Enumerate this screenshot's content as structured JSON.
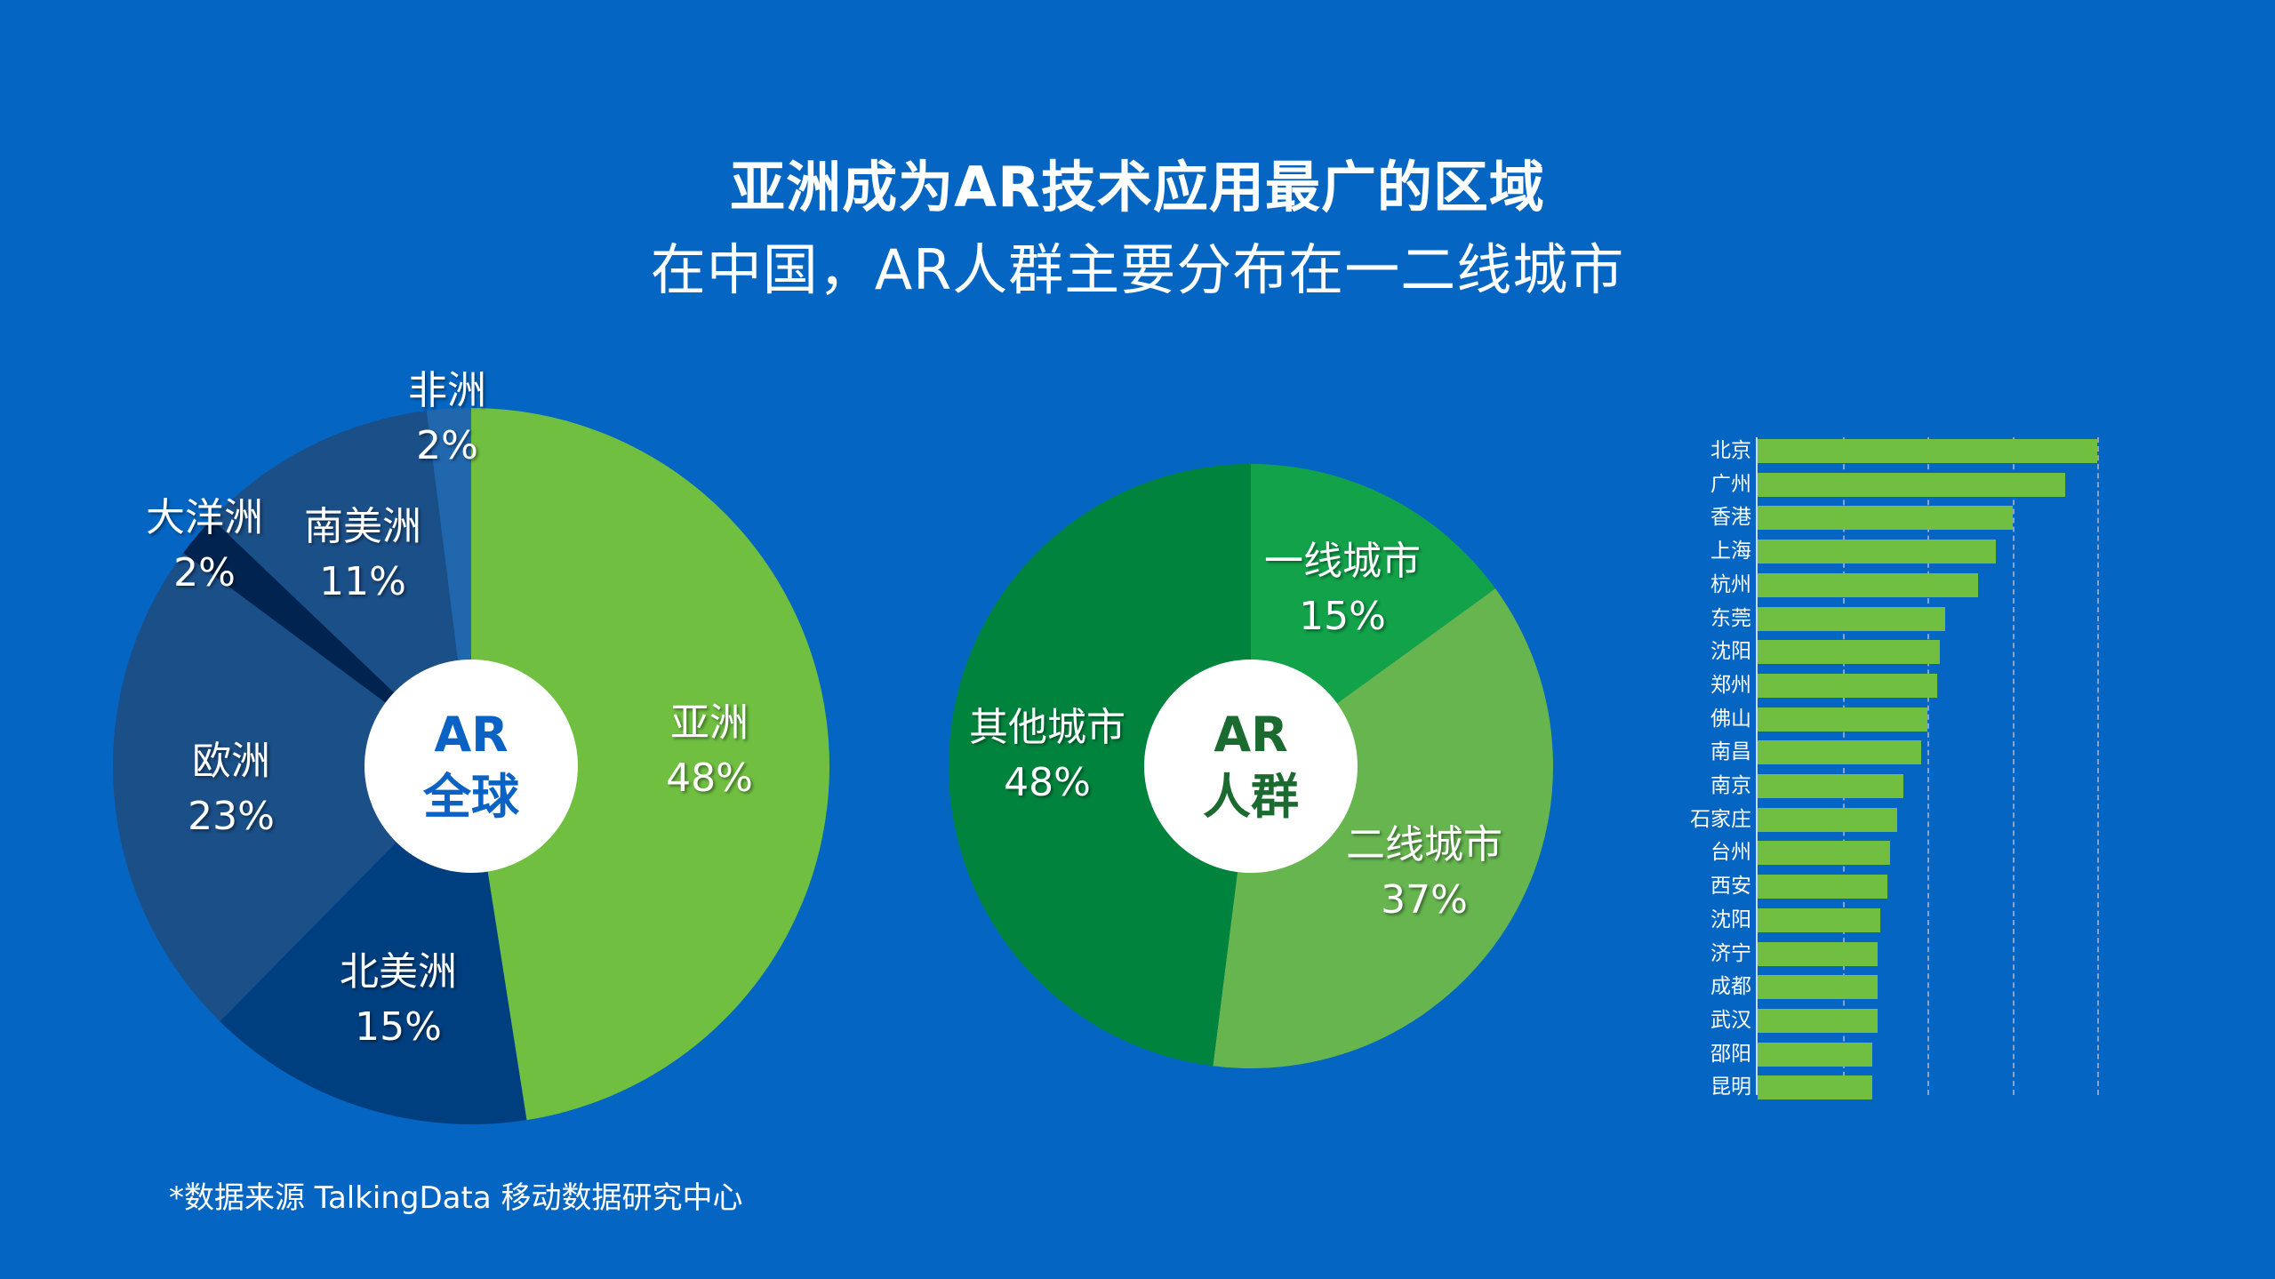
{
  "header": {
    "title": "亚洲成为AR技术应用最广的区域",
    "subtitle": "在中国，AR人群主要分布在一二线城市"
  },
  "colors": {
    "background": "#0466c2",
    "asia_green": "#70bf41",
    "bar_green": "#70bf41",
    "global_center_text": "#0a63c4",
    "crowd_center_text": "#1b6a2f"
  },
  "footnote": "*数据来源 TalkingData 移动数据研究中心",
  "chart_data": [
    {
      "type": "pie",
      "title": "AR全球",
      "center_label": [
        "AR",
        "全球"
      ],
      "start": "top, clockwise",
      "slices": [
        {
          "name": "亚洲",
          "value": 48,
          "label": "48%",
          "color": "#70bf41"
        },
        {
          "name": "北美洲",
          "value": 15,
          "label": "15%",
          "color": "#003f7f"
        },
        {
          "name": "欧洲",
          "value": 23,
          "label": "23%",
          "color": "#1b4f87"
        },
        {
          "name": "大洋洲",
          "value": 2,
          "label": "2%",
          "color": "#00234f"
        },
        {
          "name": "南美洲",
          "value": 11,
          "label": "11%",
          "color": "#1b4f87"
        },
        {
          "name": "非洲",
          "value": 2,
          "label": "2%",
          "color": "#2167ad"
        }
      ]
    },
    {
      "type": "pie",
      "title": "AR人群",
      "center_label": [
        "AR",
        "人群"
      ],
      "start": "top, clockwise",
      "slices": [
        {
          "name": "一线城市",
          "value": 15,
          "label": "15%",
          "color": "#12a24a"
        },
        {
          "name": "二线城市",
          "value": 37,
          "label": "37%",
          "color": "#66b54f"
        },
        {
          "name": "其他城市",
          "value": 48,
          "label": "48%",
          "color": "#00843d"
        }
      ]
    },
    {
      "type": "bar",
      "orientation": "horizontal",
      "title": "",
      "xlabel": "",
      "ylabel": "",
      "grid": true,
      "grid_lines": 4,
      "xlim": [
        0,
        4
      ],
      "categories": [
        "北京",
        "广州",
        "香港",
        "上海",
        "杭州",
        "东莞",
        "沈阳",
        "郑州",
        "佛山",
        "南昌",
        "南京",
        "石家庄",
        "台州",
        "西安",
        "沈阳",
        "济宁",
        "成都",
        "武汉",
        "邵阳",
        "昆明"
      ],
      "values": [
        4.0,
        3.62,
        3.0,
        2.81,
        2.6,
        2.21,
        2.15,
        2.12,
        2.0,
        1.93,
        1.72,
        1.64,
        1.56,
        1.53,
        1.44,
        1.41,
        1.41,
        1.41,
        1.35,
        1.35
      ],
      "note": "relative values read from grid (no tick labels shown)"
    }
  ]
}
